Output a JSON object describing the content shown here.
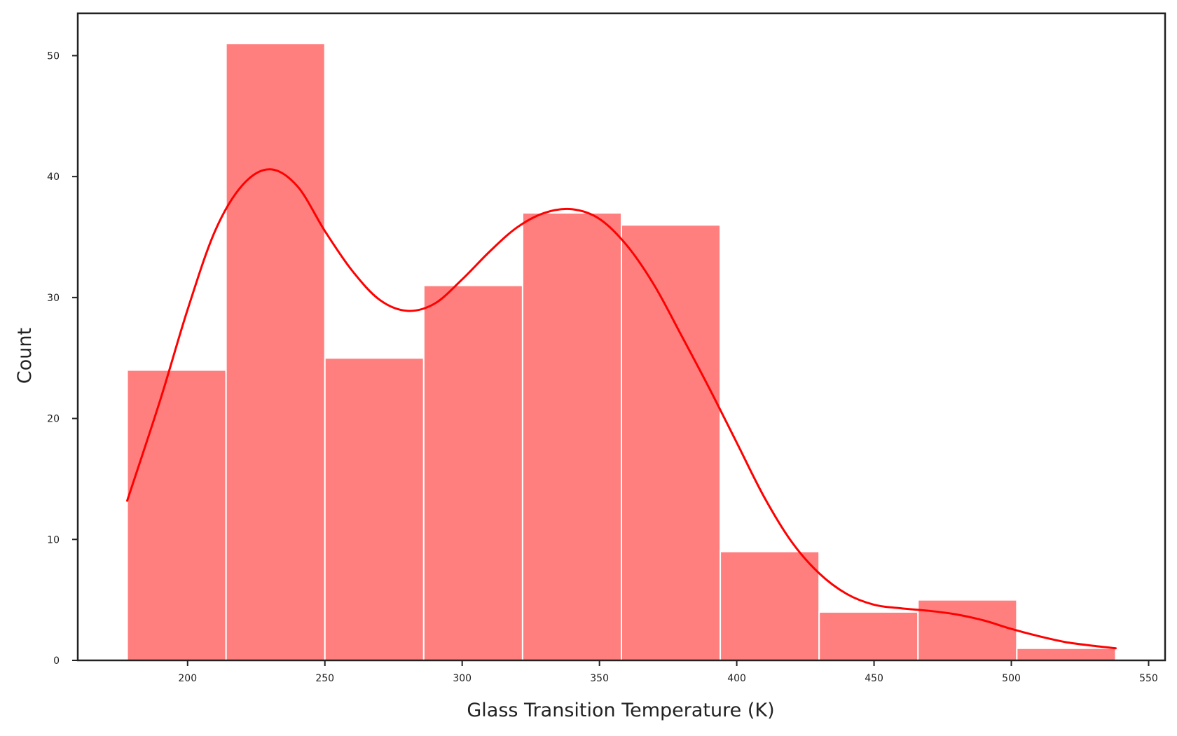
{
  "chart_data": {
    "type": "bar",
    "subtype": "histogram-with-kde",
    "title": "",
    "xlabel": "Glass Transition Temperature (K)",
    "ylabel": "Count",
    "xlim": [
      160,
      556
    ],
    "ylim": [
      0,
      53.5
    ],
    "grid": false,
    "legend": "none",
    "xticks": [
      200,
      250,
      300,
      350,
      400,
      450,
      500,
      550
    ],
    "yticks": [
      0,
      10,
      20,
      30,
      40,
      50
    ],
    "bins": [
      {
        "start": 178,
        "end": 214,
        "count": 24
      },
      {
        "start": 214,
        "end": 250,
        "count": 51
      },
      {
        "start": 250,
        "end": 286,
        "count": 25
      },
      {
        "start": 286,
        "end": 322,
        "count": 31
      },
      {
        "start": 322,
        "end": 358,
        "count": 37
      },
      {
        "start": 358,
        "end": 394,
        "count": 36
      },
      {
        "start": 394,
        "end": 430,
        "count": 9
      },
      {
        "start": 430,
        "end": 466,
        "count": 4
      },
      {
        "start": 466,
        "end": 502,
        "count": 5
      },
      {
        "start": 502,
        "end": 538,
        "count": 1
      }
    ],
    "kde": {
      "x": [
        178,
        190,
        200,
        210,
        220,
        230,
        240,
        250,
        260,
        270,
        280,
        290,
        300,
        310,
        320,
        330,
        340,
        350,
        360,
        370,
        380,
        390,
        400,
        410,
        420,
        430,
        440,
        450,
        460,
        470,
        480,
        490,
        500,
        510,
        520,
        530,
        538
      ],
      "y": [
        13.2,
        21.5,
        29,
        35.5,
        39.3,
        40.6,
        39.2,
        35.5,
        32.2,
        29.8,
        28.9,
        29.5,
        31.5,
        33.8,
        35.8,
        37,
        37.3,
        36.5,
        34.3,
        31,
        26.8,
        22.5,
        18,
        13.5,
        9.8,
        7.2,
        5.5,
        4.6,
        4.3,
        4.1,
        3.8,
        3.3,
        2.6,
        2,
        1.5,
        1.2,
        1
      ]
    },
    "colors": {
      "bar_fill": "#ff7f7f",
      "bar_edge": "#ffffff",
      "kde_line": "#ff0000",
      "axis": "#222222"
    }
  }
}
